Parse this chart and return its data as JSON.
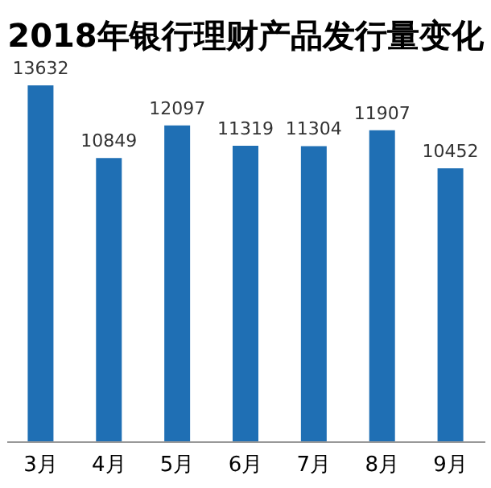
{
  "chart_data": {
    "type": "bar",
    "title": "2018年银行理财产品发行量变化",
    "categories": [
      "3月",
      "4月",
      "5月",
      "6月",
      "7月",
      "8月",
      "9月"
    ],
    "values": [
      13632,
      10849,
      12097,
      11319,
      11304,
      11907,
      10452
    ],
    "color": "#1f6fb4",
    "data_labels": true
  }
}
